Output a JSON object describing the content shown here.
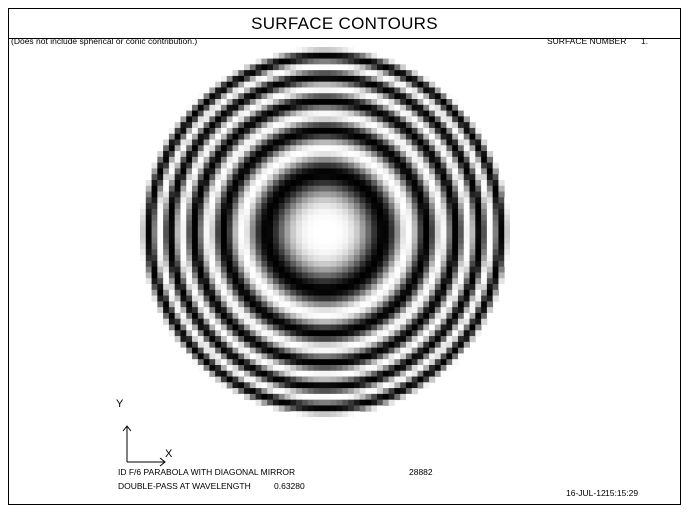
{
  "window": {
    "title": "SURFACE CONTOURS"
  },
  "header": {
    "note": "(Does not include spherical or conic contribution.)",
    "surface_number_label": "SURFACE NUMBER",
    "surface_number_value": "1."
  },
  "axes": {
    "y_label": "Y",
    "x_label": "X"
  },
  "footer": {
    "lens_title": "ID F/6 PARABOLA WITH DIAGONAL MIRROR",
    "lens_id": "28882",
    "mode_label": "DOUBLE-PASS AT WAVELENGTH",
    "wavelength": "0.63280",
    "date": "16-JUL-12",
    "time": "15:15:29"
  },
  "fringe_plot": {
    "grid_cells": 64,
    "fringe_count": 5.0,
    "palette": [
      "#ffffff",
      "#000000"
    ]
  }
}
